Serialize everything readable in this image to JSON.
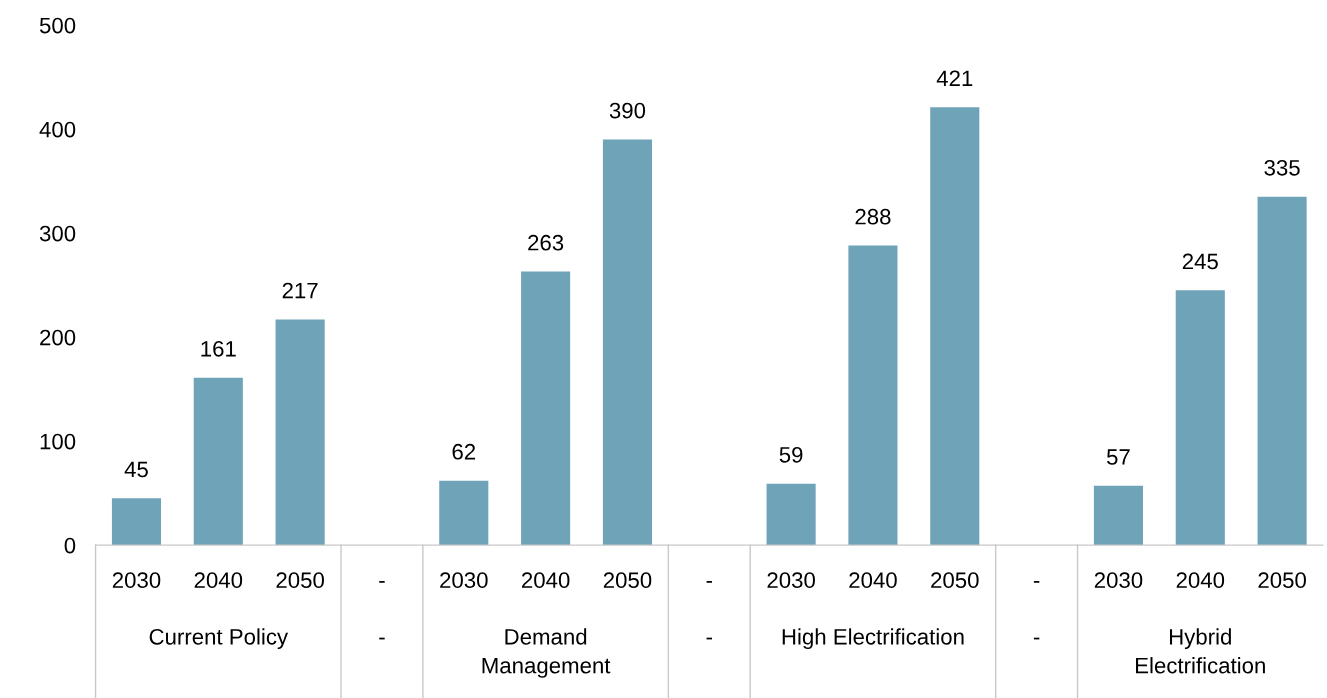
{
  "chart_data": {
    "type": "bar",
    "categories": [
      "2030",
      "2040",
      "2050",
      "-",
      "2030",
      "2040",
      "2050",
      "-",
      "2030",
      "2040",
      "2050",
      "-",
      "2030",
      "2040",
      "2050"
    ],
    "values": [
      45,
      161,
      217,
      null,
      62,
      263,
      390,
      null,
      59,
      288,
      421,
      null,
      57,
      245,
      335
    ],
    "color": "#6fa3b8",
    "ylim": [
      0,
      500
    ],
    "yticks": [
      0,
      100,
      200,
      300,
      400,
      500
    ],
    "data_labels": true,
    "grid": false,
    "legend": false,
    "annotations": [
      "Current Policy",
      "-",
      "Demand\nManagement",
      "-",
      "High Electrification",
      "-",
      "Hybrid\nElectrification"
    ]
  }
}
